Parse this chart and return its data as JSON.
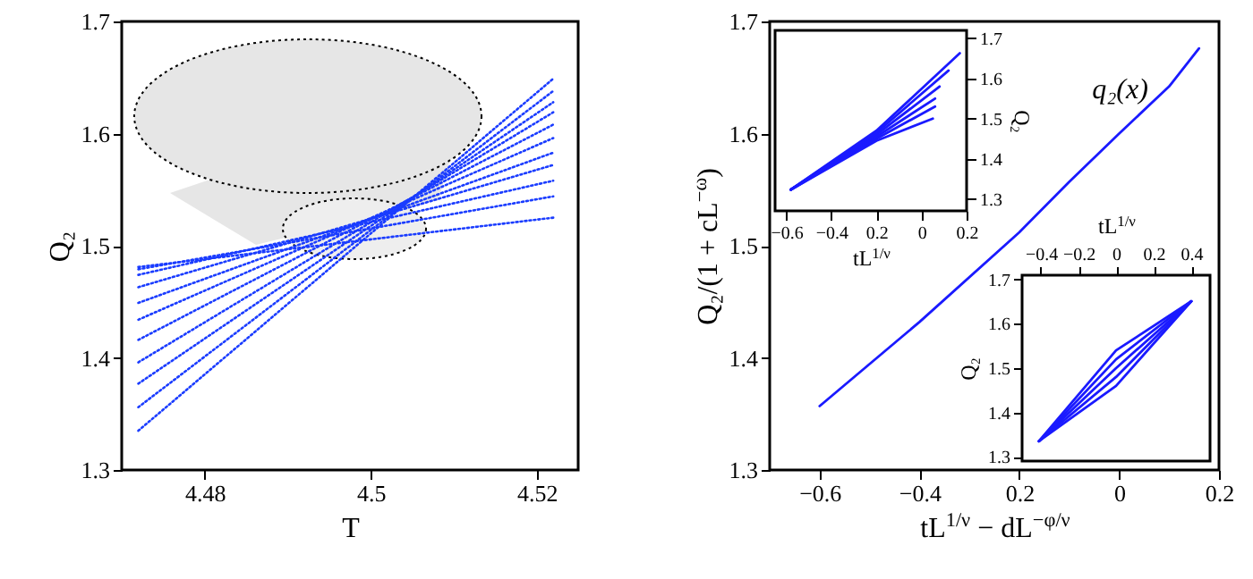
{
  "chart_data": [
    {
      "type": "line",
      "xlabel": "T",
      "ylabel": "Q₂",
      "xlim": [
        4.47,
        4.525
      ],
      "xticks": [
        4.48,
        4.5,
        4.52
      ],
      "ylim": [
        1.3,
        1.7
      ],
      "yticks": [
        1.3,
        1.4,
        1.5,
        1.6,
        1.7
      ],
      "line_style": "dotted",
      "x": [
        4.472,
        4.522
      ],
      "series": [
        {
          "color": "#1a3cff",
          "values": [
            1.335,
            1.649
          ]
        },
        {
          "color": "#1a3cff",
          "values": [
            1.356,
            1.638
          ]
        },
        {
          "color": "#1a3cff",
          "values": [
            1.377,
            1.628
          ]
        },
        {
          "color": "#1a3cff",
          "values": [
            1.396,
            1.619
          ]
        },
        {
          "color": "#1a3cff",
          "values": [
            1.416,
            1.608
          ]
        },
        {
          "color": "#1a3cff",
          "values": [
            1.434,
            1.596
          ]
        },
        {
          "color": "#1a3cff",
          "values": [
            1.449,
            1.583
          ]
        },
        {
          "color": "#1a3cff",
          "values": [
            1.463,
            1.572
          ]
        },
        {
          "color": "#1a3cff",
          "values": [
            1.474,
            1.558
          ]
        },
        {
          "color": "#1a3cff",
          "values": [
            1.479,
            1.544
          ]
        },
        {
          "color": "#1a3cff",
          "values": [
            1.481,
            1.525
          ]
        }
      ]
    },
    {
      "type": "line",
      "xlabel": "tL$^{1/ν}$ − dL$^{−φ/ν}$",
      "ylabel": "Q₂/(1 + cL$^{−ω}$)",
      "xlim": [
        -0.7,
        0.2
      ],
      "xticks": [
        -0.6,
        -0.4,
        {
          "value": -0.2,
          "label": "0.2"
        },
        0,
        0.2
      ],
      "ylim": [
        1.3,
        1.7
      ],
      "yticks": [
        1.3,
        1.4,
        1.5,
        1.6,
        1.7
      ],
      "x": [
        -0.6,
        -0.4,
        -0.2,
        -0.1,
        0,
        0.1,
        0.16
      ],
      "series": [
        {
          "color": "#1a1aff",
          "values": [
            1.357,
            1.432,
            1.512,
            1.557,
            1.6,
            1.642,
            1.676
          ]
        }
      ],
      "annotations": [
        "q₂(x)"
      ]
    },
    {
      "type": "line",
      "xlabel": "tL$^{1/ν}$",
      "y2label": "Q₂",
      "xlim": [
        -0.65,
        0.2
      ],
      "xticks": [
        -0.6,
        -0.4,
        {
          "value": -0.2,
          "label": "0.2"
        },
        0,
        0.2
      ],
      "y2lim": [
        1.27,
        1.72
      ],
      "y2ticks": [
        1.3,
        1.4,
        1.5,
        1.6,
        1.7
      ],
      "series": [
        {
          "color": "#1a1aff",
          "axis": "y2",
          "x": [
            -0.58,
            -0.2,
            0.17
          ],
          "values": [
            1.323,
            1.47,
            1.663
          ]
        },
        {
          "color": "#1a1aff",
          "axis": "y2",
          "x": [
            -0.58,
            -0.2,
            0.12
          ],
          "values": [
            1.323,
            1.465,
            1.62
          ]
        },
        {
          "color": "#1a1aff",
          "axis": "y2",
          "x": [
            -0.58,
            -0.2,
            0.08
          ],
          "values": [
            1.323,
            1.46,
            1.58
          ]
        },
        {
          "color": "#1a1aff",
          "axis": "y2",
          "x": [
            -0.58,
            -0.2,
            0.06
          ],
          "values": [
            1.323,
            1.455,
            1.55
          ]
        },
        {
          "color": "#1a1aff",
          "axis": "y2",
          "x": [
            -0.58,
            -0.2,
            0.06
          ],
          "values": [
            1.323,
            1.45,
            1.53
          ]
        },
        {
          "color": "#1a1aff",
          "axis": "y2",
          "x": [
            -0.58,
            -0.2,
            0.05
          ],
          "values": [
            1.323,
            1.445,
            1.5
          ]
        }
      ]
    },
    {
      "type": "line",
      "xlabel": "tL$^{1/ν}$",
      "xlim": [
        -0.5,
        0.5
      ],
      "xticks": [
        -0.4,
        -0.2,
        0,
        0.2,
        0.4
      ],
      "ylabel": "Q₂",
      "ylim": [
        1.29,
        1.71
      ],
      "yticks": [
        1.3,
        1.4,
        1.5,
        1.6,
        1.7
      ],
      "x": [
        -0.41,
        0,
        0.4
      ],
      "series": [
        {
          "color": "#1a1aff",
          "values": [
            1.335,
            1.46,
            1.651
          ]
        },
        {
          "color": "#1a1aff",
          "values": [
            1.335,
            1.48,
            1.651
          ]
        },
        {
          "color": "#1a1aff",
          "values": [
            1.335,
            1.5,
            1.651
          ]
        },
        {
          "color": "#1a1aff",
          "values": [
            1.335,
            1.52,
            1.651
          ]
        },
        {
          "color": "#1a1aff",
          "values": [
            1.335,
            1.54,
            1.651
          ]
        }
      ]
    }
  ]
}
